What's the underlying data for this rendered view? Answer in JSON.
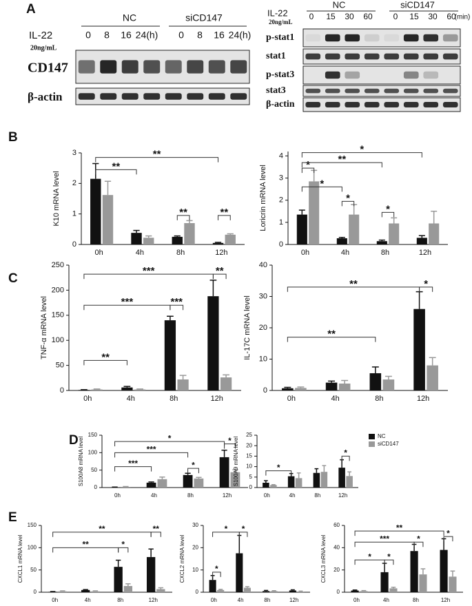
{
  "panel_labels": [
    "A",
    "B",
    "C",
    "D",
    "E"
  ],
  "blots": {
    "left": {
      "groups": [
        "NC",
        "siCD147"
      ],
      "treatment": "IL-22",
      "dose": "20ng/mL",
      "times": [
        "0",
        "8",
        "16",
        "24(h)",
        "0",
        "8",
        "16",
        "24(h)"
      ],
      "rows": [
        "CD147",
        "β-actin"
      ]
    },
    "right": {
      "groups": [
        "NC",
        "siCD147"
      ],
      "treatment": "IL-22",
      "dose": "20ng/mL",
      "times": [
        "0",
        "15",
        "30",
        "60",
        "0",
        "15",
        "30",
        "60"
      ],
      "unit": "(min)",
      "rows": [
        "p-stat1",
        "stat1",
        "p-stat3",
        "stat3",
        "β-actin"
      ]
    }
  },
  "chart_data": [
    {
      "type": "bar",
      "ylabel": "K10 mRNA level",
      "categories": [
        "0h",
        "4h",
        "8h",
        "12h"
      ],
      "series": [
        {
          "color": "#111111",
          "values": [
            2.15,
            0.38,
            0.25,
            0.05
          ],
          "errors": [
            0.5,
            0.08,
            0.03,
            0.02
          ]
        },
        {
          "color": "#999999",
          "values": [
            1.62,
            0.22,
            0.7,
            0.32
          ],
          "errors": [
            0.45,
            0.06,
            0.08,
            0.03
          ]
        }
      ],
      "ylim": [
        0,
        3
      ],
      "yticks": [
        0,
        1,
        2,
        3
      ],
      "annotations": [
        {
          "text": "**",
          "from": [
            0,
            0
          ],
          "to": [
            0,
            1
          ],
          "y": 2.45
        },
        {
          "text": "**",
          "from": [
            0,
            0
          ],
          "to": [
            0,
            3
          ],
          "y": 2.85
        },
        {
          "text": "**",
          "from": [
            0,
            2
          ],
          "to": [
            1,
            2
          ],
          "y": 0.95
        },
        {
          "text": "**",
          "from": [
            0,
            3
          ],
          "to": [
            1,
            3
          ],
          "y": 0.95
        }
      ]
    },
    {
      "type": "bar",
      "ylabel": "Loricrin mRNA level",
      "categories": [
        "0h",
        "4h",
        "8h",
        "12h"
      ],
      "series": [
        {
          "color": "#111111",
          "values": [
            1.35,
            0.28,
            0.15,
            0.3
          ],
          "errors": [
            0.2,
            0.04,
            0.05,
            0.1
          ]
        },
        {
          "color": "#999999",
          "values": [
            2.85,
            1.35,
            0.95,
            0.95
          ],
          "errors": [
            0.5,
            0.45,
            0.25,
            0.55
          ]
        }
      ],
      "ylim": [
        0,
        4.2
      ],
      "yticks": [
        0,
        1,
        2,
        3,
        4
      ],
      "annotations": [
        {
          "text": "*",
          "from": [
            0,
            0
          ],
          "to": [
            1,
            0
          ],
          "y": 3.45
        },
        {
          "text": "*",
          "from": [
            0,
            0
          ],
          "to": [
            0,
            1
          ],
          "y": 2.6
        },
        {
          "text": "**",
          "from": [
            0,
            0
          ],
          "to": [
            0,
            2
          ],
          "y": 3.7
        },
        {
          "text": "*",
          "from": [
            0,
            0
          ],
          "to": [
            0,
            3
          ],
          "y": 4.15
        },
        {
          "text": "*",
          "from": [
            0,
            1
          ],
          "to": [
            1,
            1
          ],
          "y": 1.95
        },
        {
          "text": "*",
          "from": [
            0,
            2
          ],
          "to": [
            1,
            2
          ],
          "y": 1.45
        }
      ]
    },
    {
      "type": "bar",
      "ylabel": "TNF-α mRNA level",
      "categories": [
        "0h",
        "4h",
        "8h",
        "12h"
      ],
      "series": [
        {
          "color": "#111111",
          "values": [
            1,
            6,
            140,
            188
          ],
          "errors": [
            0.5,
            2,
            8,
            32
          ]
        },
        {
          "color": "#999999",
          "values": [
            2,
            2,
            22,
            26
          ],
          "errors": [
            1,
            1,
            8,
            5
          ]
        }
      ],
      "ylim": [
        0,
        250
      ],
      "yticks": [
        0,
        50,
        100,
        150,
        200,
        250
      ],
      "annotations": [
        {
          "text": "**",
          "from": [
            0,
            0
          ],
          "to": [
            0,
            1
          ],
          "y": 60
        },
        {
          "text": "***",
          "from": [
            0,
            0
          ],
          "to": [
            0,
            2
          ],
          "y": 170
        },
        {
          "text": "***",
          "from": [
            0,
            0
          ],
          "to": [
            0,
            3
          ],
          "y": 232
        },
        {
          "text": "***",
          "from": [
            0,
            2
          ],
          "to": [
            1,
            2
          ],
          "y": 170
        },
        {
          "text": "**",
          "from": [
            0,
            3
          ],
          "to": [
            1,
            3
          ],
          "y": 232
        }
      ]
    },
    {
      "type": "bar",
      "ylabel": "IL-17C mRNA level",
      "categories": [
        "0h",
        "4h",
        "8h",
        "12h"
      ],
      "series": [
        {
          "color": "#111111",
          "values": [
            0.7,
            2.5,
            5.5,
            26
          ],
          "errors": [
            0.3,
            0.5,
            2,
            5.5
          ]
        },
        {
          "color": "#999999",
          "values": [
            0.8,
            2.2,
            3.5,
            8
          ],
          "errors": [
            0.3,
            1,
            1,
            2.5
          ]
        }
      ],
      "ylim": [
        0,
        40
      ],
      "yticks": [
        0,
        10,
        20,
        30,
        40
      ],
      "annotations": [
        {
          "text": "**",
          "from": [
            0,
            0
          ],
          "to": [
            0,
            2
          ],
          "y": 17
        },
        {
          "text": "**",
          "from": [
            0,
            0
          ],
          "to": [
            0,
            3
          ],
          "y": 33
        },
        {
          "text": "*",
          "from": [
            0,
            3
          ],
          "to": [
            1,
            3
          ],
          "y": 33
        }
      ]
    },
    {
      "type": "bar",
      "ylabel": "S100A8 mRNA level",
      "categories": [
        "0h",
        "4h",
        "8h",
        "12h"
      ],
      "series": [
        {
          "color": "#111111",
          "values": [
            1,
            14,
            36,
            87
          ],
          "errors": [
            0.5,
            2,
            5,
            20
          ]
        },
        {
          "color": "#999999",
          "values": [
            2,
            24,
            26,
            44
          ],
          "errors": [
            1,
            6,
            3,
            7
          ]
        }
      ],
      "ylim": [
        0,
        150
      ],
      "yticks": [
        0,
        50,
        100,
        150
      ],
      "annotations": [
        {
          "text": "***",
          "from": [
            0,
            0
          ],
          "to": [
            0,
            1
          ],
          "y": 60
        },
        {
          "text": "***",
          "from": [
            0,
            0
          ],
          "to": [
            0,
            2
          ],
          "y": 100
        },
        {
          "text": "*",
          "from": [
            0,
            0
          ],
          "to": [
            0,
            3
          ],
          "y": 132
        },
        {
          "text": "*",
          "from": [
            0,
            2
          ],
          "to": [
            1,
            2
          ],
          "y": 55
        },
        {
          "text": "*",
          "from": [
            0,
            3
          ],
          "to": [
            1,
            3
          ],
          "y": 125
        }
      ]
    },
    {
      "type": "bar",
      "ylabel": "S100A9 mRNA level",
      "categories": [
        "0h",
        "4h",
        "8h",
        "12h"
      ],
      "series": [
        {
          "name": "NC",
          "color": "#111111",
          "values": [
            2.3,
            5.4,
            7,
            9.5
          ],
          "errors": [
            1,
            1.3,
            2,
            3.8
          ]
        },
        {
          "name": "siCD147",
          "color": "#999999",
          "values": [
            1.2,
            4.5,
            7.5,
            5.5
          ],
          "errors": [
            0.2,
            2.5,
            3,
            2
          ]
        }
      ],
      "ylim": [
        0,
        25
      ],
      "yticks": [
        0,
        5,
        10,
        15,
        20,
        25
      ],
      "legend": "top-right",
      "annotations": [
        {
          "text": "*",
          "from": [
            0,
            0
          ],
          "to": [
            0,
            1
          ],
          "y": 8
        },
        {
          "text": "*",
          "from": [
            0,
            3
          ],
          "to": [
            1,
            3
          ],
          "y": 15
        }
      ]
    },
    {
      "type": "bar",
      "ylabel": "CXCL1 mRNA level",
      "categories": [
        "0h",
        "4h",
        "8h",
        "12h"
      ],
      "series": [
        {
          "color": "#111111",
          "values": [
            1,
            5,
            57,
            79
          ],
          "errors": [
            0.5,
            1,
            15,
            18
          ]
        },
        {
          "color": "#999999",
          "values": [
            2,
            2,
            14,
            7
          ],
          "errors": [
            1,
            1,
            5,
            3
          ]
        }
      ],
      "ylim": [
        0,
        150
      ],
      "yticks": [
        0,
        50,
        100,
        150
      ],
      "annotations": [
        {
          "text": "**",
          "from": [
            0,
            0
          ],
          "to": [
            0,
            2
          ],
          "y": 100
        },
        {
          "text": "**",
          "from": [
            0,
            0
          ],
          "to": [
            0,
            3
          ],
          "y": 135
        },
        {
          "text": "*",
          "from": [
            0,
            2
          ],
          "to": [
            1,
            2
          ],
          "y": 100
        },
        {
          "text": "**",
          "from": [
            0,
            3
          ],
          "to": [
            1,
            3
          ],
          "y": 135
        }
      ]
    },
    {
      "type": "bar",
      "ylabel": "CXCL2 mRNA level",
      "categories": [
        "0h",
        "4h",
        "8h",
        "12h"
      ],
      "series": [
        {
          "color": "#111111",
          "values": [
            5.5,
            17.5,
            0.5,
            0.8
          ],
          "errors": [
            2,
            8,
            0.3,
            0.3
          ]
        },
        {
          "color": "#999999",
          "values": [
            1,
            2,
            0.5,
            0.3
          ],
          "errors": [
            0.3,
            0.5,
            0.2,
            0.2
          ]
        }
      ],
      "ylim": [
        0,
        30
      ],
      "yticks": [
        0,
        10,
        20,
        30
      ],
      "annotations": [
        {
          "text": "*",
          "from": [
            0,
            0
          ],
          "to": [
            1,
            0
          ],
          "y": 9
        },
        {
          "text": "*",
          "from": [
            0,
            0
          ],
          "to": [
            0,
            1
          ],
          "y": 27
        },
        {
          "text": "*",
          "from": [
            0,
            1
          ],
          "to": [
            1,
            1
          ],
          "y": 27
        }
      ]
    },
    {
      "type": "bar",
      "ylabel": "CXCL3 mRNA level",
      "categories": [
        "0h",
        "4h",
        "8h",
        "12h"
      ],
      "series": [
        {
          "color": "#111111",
          "values": [
            1.5,
            18,
            37,
            38
          ],
          "errors": [
            0.5,
            8,
            6,
            10
          ]
        },
        {
          "color": "#999999",
          "values": [
            1,
            3.5,
            16,
            14
          ],
          "errors": [
            0.5,
            1,
            5,
            5
          ]
        }
      ],
      "ylim": [
        0,
        60
      ],
      "yticks": [
        0,
        20,
        40,
        60
      ],
      "annotations": [
        {
          "text": "*",
          "from": [
            0,
            0
          ],
          "to": [
            0,
            1
          ],
          "y": 29
        },
        {
          "text": "***",
          "from": [
            0,
            0
          ],
          "to": [
            0,
            2
          ],
          "y": 45
        },
        {
          "text": "**",
          "from": [
            0,
            0
          ],
          "to": [
            0,
            3
          ],
          "y": 55
        },
        {
          "text": "*",
          "from": [
            0,
            1
          ],
          "to": [
            1,
            1
          ],
          "y": 29
        },
        {
          "text": "*",
          "from": [
            0,
            2
          ],
          "to": [
            1,
            2
          ],
          "y": 45
        },
        {
          "text": "*",
          "from": [
            0,
            3
          ],
          "to": [
            1,
            3
          ],
          "y": 50
        }
      ]
    }
  ]
}
